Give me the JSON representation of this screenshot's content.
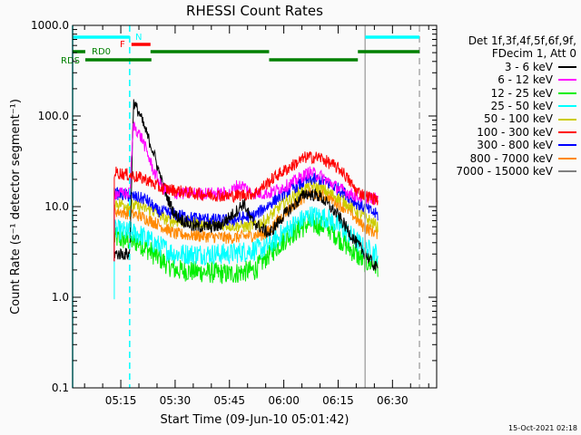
{
  "chart_data": {
    "type": "line",
    "title": "RHESSI Count Rates",
    "xlabel": "Start Time (09-Jun-10 05:01:42)",
    "ylabel": "Count Rate (s⁻¹ detector segment⁻¹)",
    "x_units": "minutes after 05:00 UT",
    "xlim": [
      1.7,
      102.2
    ],
    "ylim": [
      0.1,
      1000
    ],
    "yscale": "log",
    "xticks": [
      {
        "t": 15,
        "label": "05:15"
      },
      {
        "t": 30,
        "label": "05:30"
      },
      {
        "t": 45,
        "label": "05:45"
      },
      {
        "t": 60,
        "label": "06:00"
      },
      {
        "t": 75,
        "label": "06:15"
      },
      {
        "t": 90,
        "label": "06:30"
      }
    ],
    "yticks": [
      {
        "v": 1000,
        "label": "1000.0"
      },
      {
        "v": 100,
        "label": "100.0"
      },
      {
        "v": 10,
        "label": "10.0"
      },
      {
        "v": 1,
        "label": "1.0"
      },
      {
        "v": 0.1,
        "label": "0.1"
      }
    ],
    "legend_header": [
      "Det 1f,3f,4f,5f,6f,9f,",
      "FDecim 1, Att 0"
    ],
    "legend_placement": "right",
    "series": [
      {
        "name": "3 - 6 keV",
        "color": "#000000",
        "points": [
          [
            13.2,
            3
          ],
          [
            17.5,
            3
          ],
          [
            18.5,
            140
          ],
          [
            20,
            110
          ],
          [
            24,
            40
          ],
          [
            27,
            15
          ],
          [
            30,
            8
          ],
          [
            35,
            6
          ],
          [
            42,
            6
          ],
          [
            47,
            9
          ],
          [
            49,
            11
          ],
          [
            51,
            7
          ],
          [
            56,
            5
          ],
          [
            60,
            8
          ],
          [
            66,
            14
          ],
          [
            70,
            13
          ],
          [
            75,
            8
          ],
          [
            80,
            4
          ],
          [
            84,
            2.5
          ],
          [
            86,
            2
          ]
        ]
      },
      {
        "name": "6 - 12 keV",
        "color": "#ff00ff",
        "points": [
          [
            13.2,
            14
          ],
          [
            17.5,
            14
          ],
          [
            18.5,
            80
          ],
          [
            21,
            55
          ],
          [
            24,
            25
          ],
          [
            26.5,
            16
          ],
          [
            30,
            14
          ],
          [
            45,
            14
          ],
          [
            47,
            17
          ],
          [
            49,
            17
          ],
          [
            51,
            14
          ],
          [
            56,
            14
          ],
          [
            62,
            18
          ],
          [
            67,
            24
          ],
          [
            70,
            22
          ],
          [
            75,
            16
          ],
          [
            80,
            13
          ],
          [
            86,
            12
          ]
        ]
      },
      {
        "name": "12 - 25 keV",
        "color": "#00ee00",
        "points": [
          [
            13.2,
            4.5
          ],
          [
            20,
            4
          ],
          [
            24,
            3
          ],
          [
            30,
            2
          ],
          [
            45,
            1.8
          ],
          [
            52,
            2
          ],
          [
            56,
            3
          ],
          [
            62,
            5
          ],
          [
            67,
            6.5
          ],
          [
            72,
            6
          ],
          [
            78,
            3.5
          ],
          [
            82,
            2.5
          ],
          [
            86,
            2.2
          ]
        ]
      },
      {
        "name": "25 - 50 keV",
        "color": "#00ffff",
        "points": [
          [
            13.2,
            5.5
          ],
          [
            20,
            5
          ],
          [
            24,
            4
          ],
          [
            30,
            3
          ],
          [
            45,
            3
          ],
          [
            55,
            3.5
          ],
          [
            62,
            6
          ],
          [
            67,
            8
          ],
          [
            72,
            7.5
          ],
          [
            78,
            5
          ],
          [
            82,
            3.5
          ],
          [
            86,
            3
          ]
        ]
      },
      {
        "name": "50 - 100 keV",
        "color": "#cccc00",
        "points": [
          [
            13.2,
            11
          ],
          [
            20,
            10
          ],
          [
            24,
            9
          ],
          [
            28,
            7
          ],
          [
            40,
            6.5
          ],
          [
            50,
            6
          ],
          [
            55,
            7
          ],
          [
            60,
            11
          ],
          [
            67,
            17
          ],
          [
            70,
            16
          ],
          [
            76,
            12
          ],
          [
            80,
            9
          ],
          [
            86,
            6
          ]
        ]
      },
      {
        "name": "100 - 300 keV",
        "color": "#ff0000",
        "points": [
          [
            13.2,
            24
          ],
          [
            18,
            22
          ],
          [
            22,
            20
          ],
          [
            26,
            16
          ],
          [
            35,
            14
          ],
          [
            45,
            13
          ],
          [
            52,
            14
          ],
          [
            58,
            22
          ],
          [
            66,
            35
          ],
          [
            70,
            35
          ],
          [
            76,
            25
          ],
          [
            80,
            15
          ],
          [
            83,
            13
          ],
          [
            86,
            12
          ]
        ]
      },
      {
        "name": "300 - 800 keV",
        "color": "#0000ff",
        "points": [
          [
            13.2,
            14
          ],
          [
            18,
            13
          ],
          [
            22,
            12
          ],
          [
            25,
            9
          ],
          [
            35,
            7.5
          ],
          [
            45,
            7
          ],
          [
            52,
            8
          ],
          [
            60,
            14
          ],
          [
            67,
            20
          ],
          [
            70,
            20
          ],
          [
            76,
            15
          ],
          [
            80,
            11
          ],
          [
            86,
            8
          ]
        ]
      },
      {
        "name": "800 - 7000 keV",
        "color": "#ff8800",
        "points": [
          [
            13.2,
            9
          ],
          [
            20,
            8
          ],
          [
            25,
            6.5
          ],
          [
            30,
            5
          ],
          [
            45,
            4.5
          ],
          [
            55,
            5
          ],
          [
            62,
            10
          ],
          [
            67,
            14
          ],
          [
            72,
            13
          ],
          [
            78,
            9
          ],
          [
            82,
            6
          ],
          [
            86,
            5
          ]
        ]
      },
      {
        "name": "7000 - 15000 keV",
        "color": "#808080",
        "points": []
      }
    ],
    "flags": [
      {
        "label": "N",
        "color": "#00ffff",
        "row": 0,
        "intervals": [
          [
            1.7,
            17.45
          ],
          [
            82.45,
            97.45
          ]
        ]
      },
      {
        "label": "F",
        "color": "#ff0000",
        "row": 1,
        "intervals": [
          [
            17.95,
            23.2
          ]
        ]
      },
      {
        "label": "RD0",
        "color": "#008000",
        "row": 2,
        "intervals": [
          [
            1.7,
            5.2
          ],
          [
            23.2,
            55.95
          ],
          [
            80.45,
            97.45
          ]
        ]
      },
      {
        "label": "RDS",
        "color": "#008000",
        "row": 3,
        "intervals": [
          [
            5.2,
            23.45
          ],
          [
            55.95,
            80.45
          ]
        ]
      }
    ],
    "vlines": [
      {
        "t": 1.7,
        "color": "#00ffff",
        "dashed": false
      },
      {
        "t": 17.45,
        "color": "#00ffff",
        "dashed": true
      },
      {
        "t": 82.45,
        "color": "#aaaaaa",
        "dashed": false
      },
      {
        "t": 97.45,
        "color": "#aaaaaa",
        "dashed": true
      }
    ]
  },
  "footer": {
    "timestamp": "15-Oct-2021 02:18"
  }
}
